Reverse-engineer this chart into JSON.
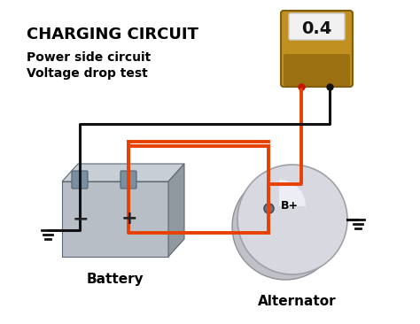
{
  "title": "CHARGING CIRCUIT",
  "subtitle_line1": "Power side circuit",
  "subtitle_line2": "Voltage drop test",
  "meter_value": "0.4",
  "battery_label": "Battery",
  "alternator_label": "Alternator",
  "bp_label": "B+",
  "bg_color": "#ffffff",
  "title_color": "#000000",
  "subtitle_color": "#000000",
  "wire_orange_color": "#e84000",
  "wire_black_color": "#111111",
  "battery_body_color": "#b0b8c0",
  "battery_top_color": "#c8d0d8",
  "battery_dark_color": "#808890",
  "meter_body_color_top": "#c8a020",
  "meter_body_color_bot": "#a07010",
  "meter_screen_color": "#f0f0f0",
  "alternator_body_color": "#d0d0d8",
  "alternator_shine_color": "#e8e8f0",
  "ground_color": "#111111",
  "terminal_neg_color": "#708090",
  "terminal_pos_color": "#708090"
}
